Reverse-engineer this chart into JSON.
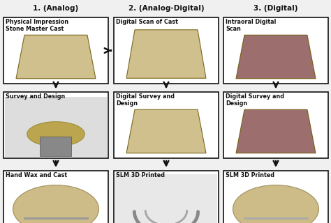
{
  "title_col1": "1. (Analog)",
  "title_col2": "2. (Analog-Digital)",
  "title_col3": "3. (Digital)",
  "col1_labels": [
    "Physical Impression\nStone Master Cast",
    "Survey and Design",
    "Hand Wax and Cast"
  ],
  "col2_labels": [
    "Digital Scan of Cast",
    "Digital Survey and\nDesign",
    "SLM 3D Printed"
  ],
  "col3_labels": [
    "Intraoral Digital\nScan",
    "Digital Survey and\nDesign",
    "SLM 3D Printed"
  ],
  "col1_img_colors": [
    "#c8b57a",
    "#7a7a7a",
    "#c8b57a"
  ],
  "col2_img_colors": [
    "#c8b57a",
    "#c8b57a",
    "#aaaaaa"
  ],
  "col3_img_colors": [
    "#8b5555",
    "#8b5555",
    "#c8b57a"
  ],
  "bg_color": "#f0f0f0",
  "box_bg": "#ffffff",
  "box_edge_color": "#111111",
  "text_color": "#111111",
  "arrow_color": "#111111",
  "label_fontsize": 5.8,
  "title_fontsize": 7.5,
  "fig_width": 4.74,
  "fig_height": 3.2,
  "fig_dpi": 100
}
